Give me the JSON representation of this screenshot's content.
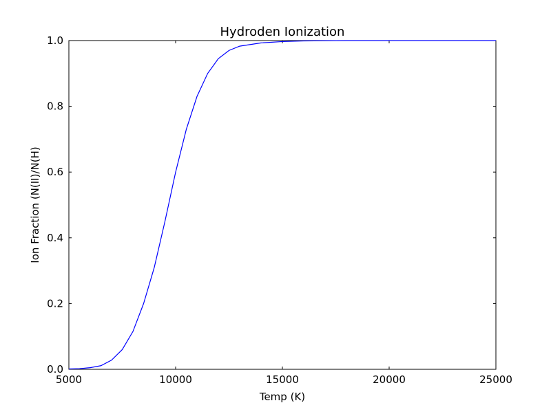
{
  "chart_data": {
    "type": "line",
    "title": "Hydroden Ionization",
    "xlabel": "Temp (K)",
    "ylabel": "Ion Fraction (N(II)/N(H)",
    "xlim": [
      5000,
      25000
    ],
    "ylim": [
      0.0,
      1.0
    ],
    "xticks": [
      5000,
      10000,
      15000,
      20000,
      25000
    ],
    "xtick_labels": [
      "5000",
      "10000",
      "15000",
      "20000",
      "25000"
    ],
    "yticks": [
      0.0,
      0.2,
      0.4,
      0.6,
      0.8,
      1.0
    ],
    "ytick_labels": [
      "0.0",
      "0.2",
      "0.4",
      "0.6",
      "0.8",
      "1.0"
    ],
    "grid": false,
    "colors": {
      "line": "#0000ff",
      "axes": "#000000",
      "background": "#ffffff"
    },
    "series": [
      {
        "x": [
          5000,
          5500,
          6000,
          6500,
          7000,
          7500,
          8000,
          8500,
          9000,
          9500,
          10000,
          10500,
          11000,
          11500,
          12000,
          12500,
          13000,
          14000,
          15000,
          16000,
          18000,
          20000,
          22000,
          25000
        ],
        "y": [
          0.001,
          0.002,
          0.005,
          0.011,
          0.028,
          0.06,
          0.115,
          0.2,
          0.31,
          0.45,
          0.6,
          0.73,
          0.83,
          0.9,
          0.945,
          0.97,
          0.983,
          0.993,
          0.997,
          0.999,
          1.0,
          1.0,
          1.0,
          1.0
        ]
      }
    ]
  }
}
